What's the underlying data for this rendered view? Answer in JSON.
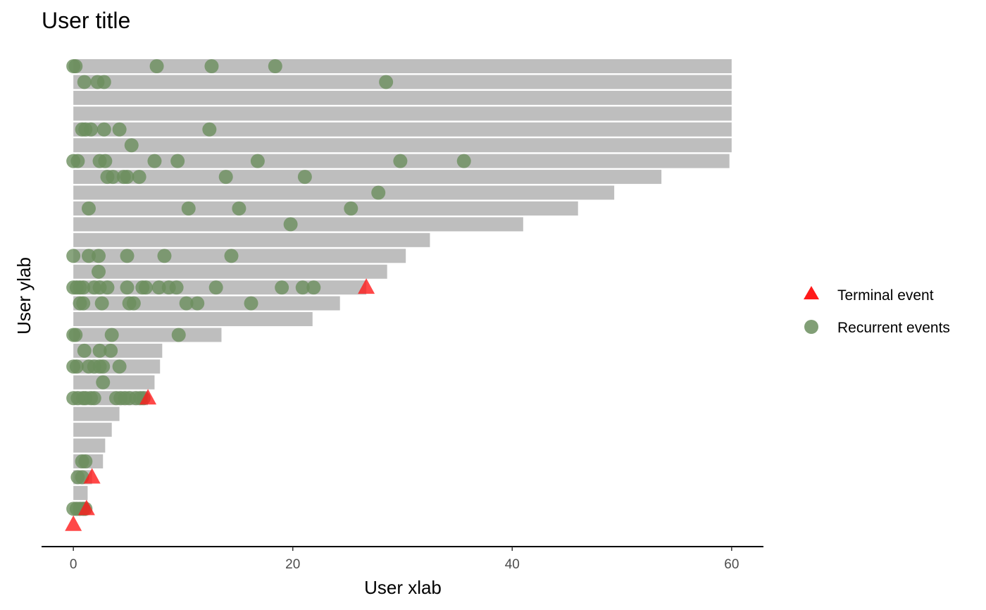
{
  "chart_data": {
    "type": "event-timeline",
    "title": "User title",
    "xlabel": "User xlab",
    "ylabel": "User ylab",
    "xlim": [
      -2.9,
      62.9
    ],
    "x_ticks": [
      0,
      20,
      40,
      60
    ],
    "grid": false,
    "legend_position": "right",
    "colors": {
      "bar": "#bebebe",
      "terminal": "#ff1a1a",
      "recurrent": "#6b8e5e",
      "axis": "#000000",
      "tick_label": "#4d4d4d"
    },
    "legend": [
      {
        "label": "Terminal event",
        "shape": "triangle",
        "color": "#ff1a1a"
      },
      {
        "label": "Recurrent events",
        "shape": "circle",
        "color": "#6b8e5e"
      }
    ],
    "subjects": [
      {
        "end": 60,
        "recurrent": [
          0,
          0.2,
          7.6,
          12.6,
          18.4
        ],
        "terminal": null
      },
      {
        "end": 60,
        "recurrent": [
          1,
          2.2,
          2.8,
          28.5
        ],
        "terminal": null
      },
      {
        "end": 60,
        "recurrent": [],
        "terminal": null
      },
      {
        "end": 60,
        "recurrent": [],
        "terminal": null
      },
      {
        "end": 60,
        "recurrent": [
          0.8,
          1.1,
          1.6,
          2.8,
          4.2,
          12.4
        ],
        "terminal": null
      },
      {
        "end": 60,
        "recurrent": [
          5.3
        ],
        "terminal": null
      },
      {
        "end": 59.8,
        "recurrent": [
          0,
          0.4,
          2.4,
          2.9,
          7.4,
          9.5,
          16.8,
          29.8,
          35.6
        ],
        "terminal": null
      },
      {
        "end": 53.6,
        "recurrent": [
          3.1,
          3.6,
          4.6,
          4.9,
          6,
          13.9,
          21.1
        ],
        "terminal": null
      },
      {
        "end": 49.3,
        "recurrent": [
          27.8
        ],
        "terminal": null
      },
      {
        "end": 46,
        "recurrent": [
          1.4,
          10.5,
          15.1,
          25.3
        ],
        "terminal": null
      },
      {
        "end": 41,
        "recurrent": [
          19.8
        ],
        "terminal": null
      },
      {
        "end": 32.5,
        "recurrent": [],
        "terminal": null
      },
      {
        "end": 30.3,
        "recurrent": [
          0,
          1.4,
          2.3,
          4.9,
          8.3,
          14.4
        ],
        "terminal": null
      },
      {
        "end": 28.6,
        "recurrent": [
          2.3
        ],
        "terminal": null
      },
      {
        "end": 26.7,
        "recurrent": [
          0,
          0.3,
          0.6,
          0.9,
          1.9,
          2.4,
          3.1,
          4.9,
          6.3,
          6.6,
          7.8,
          8.7,
          9.4,
          13,
          19,
          20.9,
          21.9
        ],
        "terminal": 26.7
      },
      {
        "end": 24.3,
        "recurrent": [
          0.6,
          0.9,
          2.6,
          5.1,
          5.5,
          10.3,
          11.3,
          16.2
        ],
        "terminal": null
      },
      {
        "end": 21.8,
        "recurrent": [],
        "terminal": null
      },
      {
        "end": 13.5,
        "recurrent": [
          0,
          0.2,
          3.5,
          9.6
        ],
        "terminal": null
      },
      {
        "end": 8.1,
        "recurrent": [
          1,
          2.4,
          3.4
        ],
        "terminal": null
      },
      {
        "end": 7.9,
        "recurrent": [
          0,
          0.3,
          1.4,
          1.9,
          2.4,
          2.7,
          4.2
        ],
        "terminal": null
      },
      {
        "end": 7.4,
        "recurrent": [
          2.7
        ],
        "terminal": null
      },
      {
        "end": 6.8,
        "recurrent": [
          0,
          0.4,
          0.9,
          1.1,
          1.6,
          1.9,
          3.9,
          4.3,
          4.7,
          5.1,
          5.7,
          6.1,
          6.4
        ],
        "terminal": 6.8
      },
      {
        "end": 4.2,
        "recurrent": [],
        "terminal": null
      },
      {
        "end": 3.5,
        "recurrent": [],
        "terminal": null
      },
      {
        "end": 2.9,
        "recurrent": [],
        "terminal": null
      },
      {
        "end": 2.7,
        "recurrent": [
          0.8,
          1.1
        ],
        "terminal": null
      },
      {
        "end": 1.7,
        "recurrent": [
          0.4,
          0.8
        ],
        "terminal": 1.7
      },
      {
        "end": 1.3,
        "recurrent": [],
        "terminal": null
      },
      {
        "end": 1.2,
        "recurrent": [
          0,
          0.3,
          0.6,
          0.9,
          1.1
        ],
        "terminal": 1.2
      },
      {
        "end": 0,
        "recurrent": [],
        "terminal": 0
      }
    ]
  }
}
